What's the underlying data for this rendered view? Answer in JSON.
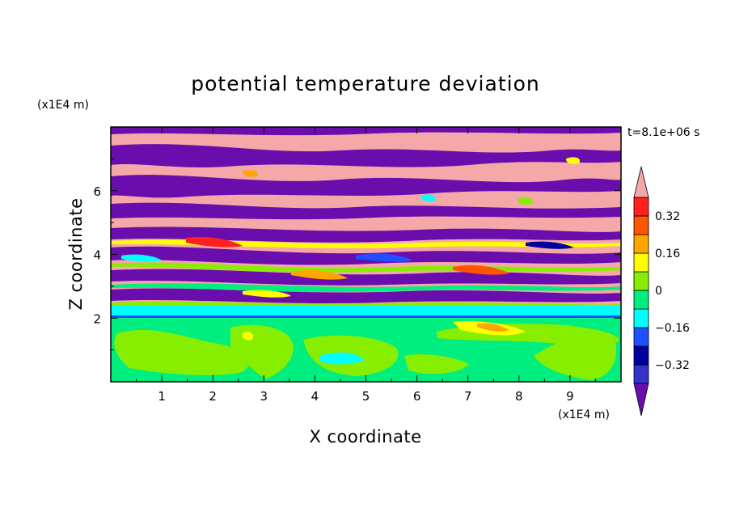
{
  "chart_data": {
    "type": "heatmap",
    "title": "potential temperature deviation",
    "xlabel": "X coordinate",
    "ylabel": "Z coordinate",
    "x_unit": "(x1E4 m)",
    "y_unit": "(x1E4 m)",
    "time_label": "t=8.1e+06 s",
    "xlim": [
      0,
      10
    ],
    "ylim": [
      0,
      8
    ],
    "x_ticks": [
      "1",
      "2",
      "3",
      "4",
      "5",
      "6",
      "7",
      "8",
      "9"
    ],
    "y_ticks": [
      "2",
      "4",
      "6"
    ],
    "colorbar": {
      "labels": [
        "0.32",
        "0.16",
        "0",
        "-0.16",
        "-0.32"
      ],
      "levels": [
        -0.4,
        -0.32,
        -0.24,
        -0.16,
        -0.08,
        0,
        0.08,
        0.16,
        0.24,
        0.32,
        0.4
      ],
      "colors": [
        "#6a0dad",
        "#3333cc",
        "#0000a0",
        "#2050ff",
        "#00ffff",
        "#00ee80",
        "#88ee00",
        "#ffff00",
        "#ffa500",
        "#ff5500",
        "#ff2020",
        "#f4a8a8"
      ],
      "extend": "both"
    },
    "bands": [
      {
        "z_min": 0.0,
        "z_max": 2.0,
        "description_level": 0.04
      },
      {
        "z_min": 2.0,
        "z_max": 2.3,
        "description_level": -0.1
      },
      {
        "z_min": 2.3,
        "z_max": 5.0,
        "description_level": "mixed"
      },
      {
        "z_min": 5.0,
        "z_max": 8.0,
        "description_level": "alternating -0.4 / 0.4"
      }
    ]
  }
}
